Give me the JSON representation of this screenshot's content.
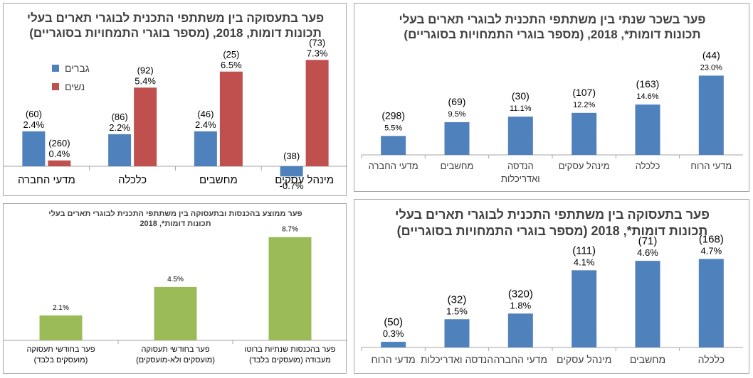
{
  "colors": {
    "blue": "#4f81bd",
    "red": "#c0504d",
    "green": "#9bbb59",
    "axis": "#a6a6a6"
  },
  "panels": {
    "top_left": {
      "title_line1": "פער בתעסוקה בין משתתפי התכנית לבוגרי תארים בעלי",
      "title_line2": "תכונות דומות, 2018, (מספר בוגרי התמחויות בסוגריים)",
      "legend": [
        "גברים",
        "נשים"
      ]
    },
    "top_right": {
      "title_line1": "פער בשכר שנתי בין משתתפי התכנית לבוגרי תארים בעלי",
      "title_line2": "תכונות דומות*, 2018, (מספר בוגרי התמחויות בסוגריים)"
    },
    "bottom_left": {
      "title_line1": "פער ממוצע בהכנסות ובתעסוקה בין משתתפי התכנית לבוגרי תארים בעלי",
      "title_line2": "תכונות דומות*, 2018"
    },
    "bottom_right": {
      "title_line1": "פער בתעסוקה בין משתתפי התכנית לבוגרי תארים בעלי",
      "title_line2": "תכונות דומות*, 2018 (מספר בוגרי התמחויות בסוגריים)"
    }
  },
  "chart_data": [
    {
      "id": "top_left",
      "type": "bar",
      "categories": [
        "מדעי החברה",
        "כלכלה",
        "מחשבים",
        "מינהל עסקים"
      ],
      "series": [
        {
          "name": "גברים",
          "values": [
            2.4,
            2.2,
            2.4,
            -0.7
          ],
          "labels": [
            "2.4%",
            "2.2%",
            "2.4%",
            "-0.7%"
          ],
          "counts": [
            "(60)",
            "(86)",
            "(46)",
            "(38)"
          ]
        },
        {
          "name": "נשים",
          "values": [
            0.4,
            5.4,
            6.5,
            7.3
          ],
          "labels": [
            "0.4%",
            "5.4%",
            "6.5%",
            "7.3%"
          ],
          "counts": [
            "(260)",
            "(92)",
            "(25)",
            "(73)"
          ]
        }
      ],
      "ylim": [
        -1.0,
        8.0
      ],
      "legend_position": "left"
    },
    {
      "id": "top_right",
      "type": "bar",
      "categories": [
        "מדעי החברה",
        "מחשבים",
        "הנדסה ואדריכלות",
        "מינהל עסקים",
        "כלכלה",
        "מדעי הרוח"
      ],
      "values": [
        5.5,
        9.5,
        11.1,
        12.2,
        14.6,
        23.0
      ],
      "labels": [
        "5.5%",
        "9.5%",
        "11.1%",
        "12.2%",
        "14.6%",
        "23.0%"
      ],
      "counts": [
        "(298)",
        "(69)",
        "(30)",
        "(107)",
        "(163)",
        "(44)"
      ],
      "ylim": [
        0,
        25
      ]
    },
    {
      "id": "bottom_left",
      "type": "bar",
      "categories": [
        "פער בחודשי תעסוקה (מועסקים בלבד)",
        "פער בחודשי תעסוקה (מועסקים ולא-מועסקים)",
        "פער בהכנסות שנתיות ברוטו מעבודה (מועסקים בלבד)"
      ],
      "category_lines": [
        [
          "פער בחודשי תעסוקה",
          "(מועסקים בלבד)"
        ],
        [
          "פער בחודשי תעסוקה",
          "(מועסקים ולא-מועסקים)"
        ],
        [
          "פער בהכנסות שנתיות ברוטו",
          "מעבודה (מועסקים בלבד)"
        ]
      ],
      "values": [
        2.1,
        4.5,
        8.7
      ],
      "labels": [
        "2.1%",
        "4.5%",
        "8.7%"
      ],
      "ylim": [
        0,
        10
      ]
    },
    {
      "id": "bottom_right",
      "type": "bar",
      "categories": [
        "מדעי הרוח",
        "הנדסה ואדריכלות",
        "מדעי החברה",
        "מינהל עסקים",
        "מחשבים",
        "כלכלה"
      ],
      "values": [
        0.3,
        1.5,
        1.8,
        4.1,
        4.6,
        4.7
      ],
      "labels": [
        "0.3%",
        "1.5%",
        "1.8%",
        "4.1%",
        "4.6%",
        "4.7%"
      ],
      "counts": [
        "(50)",
        "(32)",
        "(320)",
        "(111)",
        "(71)",
        "(168)"
      ],
      "ylim": [
        0,
        5.5
      ]
    }
  ]
}
